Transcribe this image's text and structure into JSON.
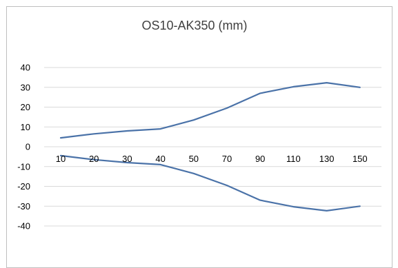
{
  "chart_data": {
    "type": "line",
    "title": "OS10-AK350 (mm)",
    "xlabel": "",
    "ylabel": "",
    "categories": [
      "10",
      "20",
      "30",
      "40",
      "50",
      "70",
      "90",
      "110",
      "130",
      "150"
    ],
    "ylim": [
      -40,
      40
    ],
    "yticks": [
      "40",
      "30",
      "20",
      "10",
      "0",
      "-10",
      "-20",
      "-30",
      "-40"
    ],
    "grid": true,
    "legend": "none",
    "series": [
      {
        "values": [
          4.5,
          6.5,
          8.0,
          9.0,
          13.5,
          19.5,
          27.0,
          30.3,
          32.3,
          30.0
        ]
      },
      {
        "values": [
          -4.5,
          -6.5,
          -8.0,
          -9.0,
          -13.5,
          -19.5,
          -27.0,
          -30.3,
          -32.3,
          -30.0
        ]
      }
    ],
    "colors": {
      "series": "#4a72a8",
      "grid": "#d9d9d9",
      "border": "#bfbfbf"
    }
  }
}
